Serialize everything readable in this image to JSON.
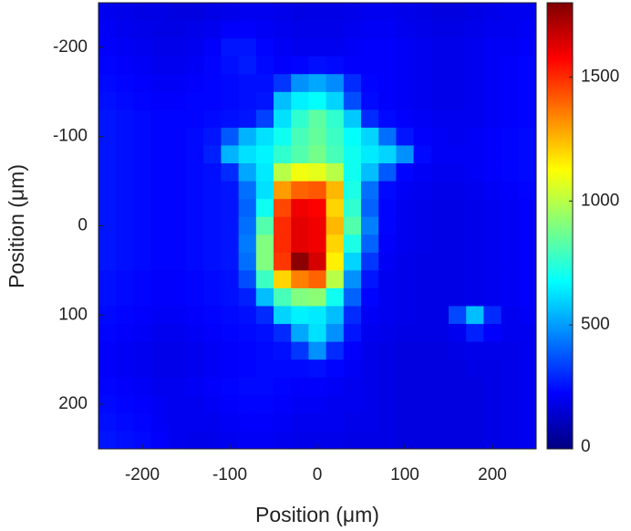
{
  "chart_data": {
    "type": "heatmap",
    "x_label": "Position (μm)",
    "y_label": "Position (μm)",
    "xlim": [
      -250,
      250
    ],
    "ylim": [
      -250,
      250
    ],
    "y_reversed": true,
    "xticks": [
      -200,
      -100,
      0,
      100,
      200
    ],
    "yticks": [
      -200,
      -100,
      0,
      100,
      200
    ],
    "colormap": "jet",
    "clim": [
      0,
      1800
    ],
    "cticks": [
      0,
      500,
      1000,
      1500
    ],
    "x": [
      -240,
      -220,
      -200,
      -180,
      -160,
      -140,
      -120,
      -100,
      -80,
      -60,
      -40,
      -20,
      0,
      20,
      40,
      60,
      80,
      100,
      120,
      140,
      160,
      180,
      200,
      220,
      240
    ],
    "y": [
      -240,
      -220,
      -200,
      -180,
      -160,
      -140,
      -120,
      -100,
      -80,
      -60,
      -40,
      -20,
      0,
      20,
      40,
      60,
      80,
      100,
      120,
      140,
      160,
      180,
      200,
      220,
      240
    ],
    "z": [
      [
        200,
        190,
        180,
        180,
        170,
        170,
        180,
        190,
        200,
        200,
        190,
        180,
        180,
        180,
        190,
        200,
        200,
        190,
        180,
        170,
        170,
        180,
        190,
        200,
        200
      ],
      [
        210,
        200,
        190,
        180,
        180,
        190,
        200,
        220,
        220,
        210,
        200,
        190,
        190,
        190,
        200,
        210,
        210,
        200,
        190,
        180,
        180,
        190,
        200,
        200,
        210
      ],
      [
        220,
        210,
        200,
        190,
        190,
        200,
        220,
        260,
        260,
        230,
        210,
        200,
        200,
        200,
        210,
        220,
        220,
        210,
        200,
        190,
        190,
        200,
        210,
        210,
        220
      ],
      [
        230,
        220,
        210,
        200,
        200,
        210,
        230,
        250,
        270,
        240,
        220,
        230,
        250,
        240,
        220,
        220,
        220,
        210,
        200,
        190,
        190,
        200,
        210,
        220,
        230
      ],
      [
        240,
        230,
        220,
        210,
        210,
        220,
        230,
        240,
        250,
        250,
        320,
        480,
        520,
        470,
        300,
        230,
        220,
        210,
        200,
        190,
        190,
        200,
        210,
        220,
        230
      ],
      [
        250,
        240,
        230,
        220,
        220,
        230,
        230,
        240,
        250,
        260,
        560,
        650,
        680,
        600,
        360,
        240,
        220,
        210,
        200,
        190,
        190,
        200,
        210,
        220,
        230
      ],
      [
        260,
        250,
        240,
        230,
        230,
        230,
        240,
        250,
        260,
        340,
        620,
        760,
        840,
        760,
        580,
        300,
        240,
        220,
        210,
        200,
        200,
        200,
        210,
        220,
        230
      ],
      [
        260,
        250,
        240,
        230,
        230,
        240,
        260,
        380,
        540,
        620,
        700,
        800,
        850,
        780,
        680,
        600,
        420,
        260,
        220,
        210,
        200,
        210,
        220,
        230,
        240
      ],
      [
        260,
        250,
        240,
        230,
        230,
        240,
        280,
        540,
        620,
        660,
        760,
        820,
        880,
        800,
        700,
        640,
        600,
        480,
        240,
        210,
        210,
        210,
        220,
        230,
        240
      ],
      [
        260,
        250,
        240,
        230,
        230,
        240,
        250,
        300,
        520,
        640,
        1000,
        1100,
        1080,
        1000,
        700,
        560,
        380,
        230,
        210,
        200,
        200,
        210,
        220,
        230,
        240
      ],
      [
        260,
        250,
        240,
        230,
        230,
        240,
        250,
        260,
        420,
        620,
        1300,
        1400,
        1420,
        1250,
        720,
        420,
        240,
        210,
        200,
        190,
        190,
        200,
        210,
        220,
        230
      ],
      [
        260,
        250,
        240,
        230,
        230,
        240,
        250,
        260,
        400,
        700,
        1450,
        1600,
        1580,
        1200,
        760,
        400,
        230,
        200,
        190,
        180,
        180,
        190,
        200,
        210,
        220
      ],
      [
        260,
        250,
        240,
        230,
        230,
        240,
        250,
        260,
        420,
        820,
        1500,
        1620,
        1600,
        1250,
        820,
        450,
        230,
        200,
        190,
        180,
        180,
        190,
        200,
        210,
        220
      ],
      [
        260,
        250,
        240,
        230,
        230,
        240,
        250,
        260,
        440,
        900,
        1500,
        1620,
        1600,
        1200,
        720,
        400,
        220,
        200,
        190,
        180,
        180,
        190,
        200,
        210,
        220
      ],
      [
        260,
        250,
        240,
        230,
        230,
        240,
        250,
        260,
        420,
        900,
        1480,
        1780,
        1650,
        1150,
        600,
        320,
        210,
        190,
        180,
        180,
        180,
        190,
        200,
        210,
        220
      ],
      [
        250,
        240,
        230,
        220,
        220,
        230,
        240,
        250,
        360,
        780,
        1200,
        1350,
        1400,
        1000,
        480,
        260,
        200,
        190,
        180,
        180,
        180,
        190,
        200,
        210,
        220
      ],
      [
        250,
        240,
        230,
        220,
        220,
        230,
        240,
        250,
        280,
        560,
        800,
        900,
        920,
        700,
        400,
        230,
        200,
        190,
        180,
        180,
        180,
        190,
        200,
        210,
        220
      ],
      [
        240,
        230,
        220,
        210,
        210,
        220,
        230,
        240,
        250,
        300,
        600,
        650,
        640,
        560,
        300,
        210,
        200,
        190,
        180,
        180,
        350,
        560,
        300,
        200,
        210
      ],
      [
        230,
        220,
        210,
        200,
        200,
        210,
        220,
        230,
        240,
        250,
        300,
        520,
        620,
        480,
        260,
        200,
        190,
        180,
        180,
        180,
        200,
        280,
        220,
        200,
        200
      ],
      [
        220,
        210,
        200,
        190,
        190,
        200,
        210,
        220,
        230,
        240,
        250,
        320,
        480,
        300,
        220,
        190,
        180,
        170,
        170,
        170,
        180,
        190,
        190,
        190,
        200
      ],
      [
        220,
        210,
        200,
        190,
        190,
        200,
        210,
        220,
        230,
        240,
        240,
        240,
        250,
        230,
        210,
        190,
        180,
        170,
        170,
        170,
        170,
        180,
        180,
        190,
        200
      ],
      [
        230,
        220,
        210,
        200,
        200,
        210,
        220,
        230,
        240,
        240,
        230,
        220,
        220,
        210,
        200,
        190,
        180,
        170,
        170,
        170,
        170,
        170,
        180,
        190,
        200
      ],
      [
        240,
        230,
        220,
        210,
        200,
        200,
        210,
        220,
        230,
        230,
        220,
        210,
        210,
        200,
        200,
        190,
        180,
        170,
        170,
        170,
        170,
        170,
        180,
        190,
        200
      ],
      [
        250,
        240,
        230,
        210,
        200,
        200,
        200,
        210,
        220,
        220,
        210,
        200,
        200,
        200,
        190,
        190,
        180,
        170,
        170,
        170,
        170,
        170,
        180,
        190,
        200
      ],
      [
        260,
        250,
        240,
        220,
        200,
        190,
        190,
        200,
        210,
        210,
        200,
        190,
        190,
        190,
        180,
        180,
        180,
        170,
        170,
        170,
        170,
        170,
        180,
        190,
        200
      ]
    ]
  }
}
